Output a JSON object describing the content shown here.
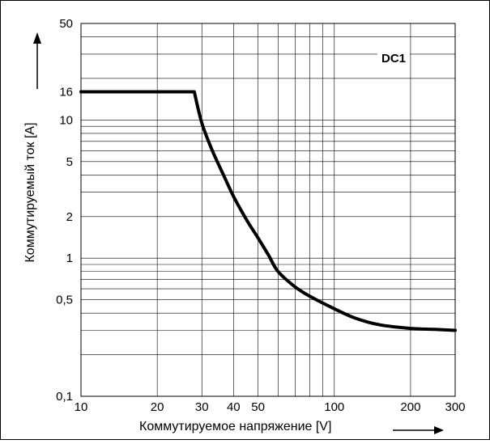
{
  "chart_data": {
    "type": "line",
    "x_scale": "log",
    "y_scale": "log",
    "xlim": [
      10,
      300
    ],
    "ylim": [
      0.1,
      50
    ],
    "xlabel": "Коммутируемое напряжение [V]",
    "ylabel": "Коммутируемый ток [A]",
    "annotation": "DC1",
    "grid": true,
    "x_ticks": [
      {
        "value": 10,
        "label": "10"
      },
      {
        "value": 20,
        "label": "20"
      },
      {
        "value": 30,
        "label": "30"
      },
      {
        "value": 40,
        "label": "40"
      },
      {
        "value": 50,
        "label": "50"
      },
      {
        "value": 100,
        "label": "100"
      },
      {
        "value": 200,
        "label": "200"
      },
      {
        "value": 300,
        "label": "300"
      }
    ],
    "y_ticks": [
      {
        "value": 0.1,
        "label": "0,1"
      },
      {
        "value": 0.5,
        "label": "0,5"
      },
      {
        "value": 1,
        "label": "1"
      },
      {
        "value": 2,
        "label": "2"
      },
      {
        "value": 5,
        "label": "5"
      },
      {
        "value": 10,
        "label": "10"
      },
      {
        "value": 16,
        "label": "16"
      },
      {
        "value": 50,
        "label": "50"
      }
    ],
    "series": [
      {
        "color": "#000000",
        "points": [
          [
            10,
            16
          ],
          [
            28,
            16
          ],
          [
            30,
            9.5
          ],
          [
            33,
            6
          ],
          [
            37,
            3.8
          ],
          [
            40,
            2.8
          ],
          [
            45,
            1.9
          ],
          [
            50,
            1.4
          ],
          [
            55,
            1.05
          ],
          [
            60,
            0.8
          ],
          [
            70,
            0.62
          ],
          [
            80,
            0.53
          ],
          [
            100,
            0.43
          ],
          [
            120,
            0.37
          ],
          [
            150,
            0.33
          ],
          [
            200,
            0.31
          ],
          [
            250,
            0.305
          ],
          [
            300,
            0.3
          ]
        ]
      }
    ]
  }
}
